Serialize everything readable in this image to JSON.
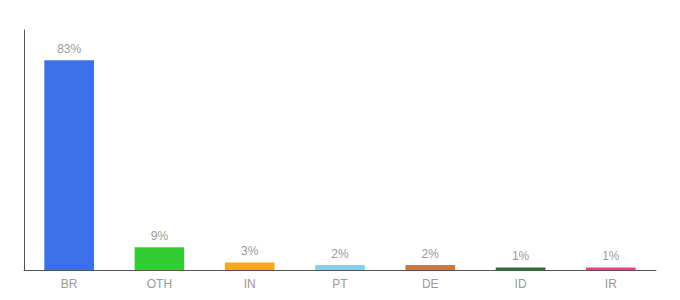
{
  "chart_data": {
    "type": "bar",
    "categories": [
      "BR",
      "OTH",
      "IN",
      "PT",
      "DE",
      "ID",
      "IR"
    ],
    "values": [
      83,
      9,
      3,
      2,
      2,
      1,
      1
    ],
    "value_labels": [
      "83%",
      "9%",
      "3%",
      "2%",
      "2%",
      "1%",
      "1%"
    ],
    "colors": [
      "#3d6fe8",
      "#33cc33",
      "#f5a623",
      "#87ceeb",
      "#c87840",
      "#2d6e2d",
      "#e84080"
    ],
    "ylim": [
      0,
      95
    ],
    "data_labels": true,
    "tick_labels": "x",
    "grid": false
  }
}
